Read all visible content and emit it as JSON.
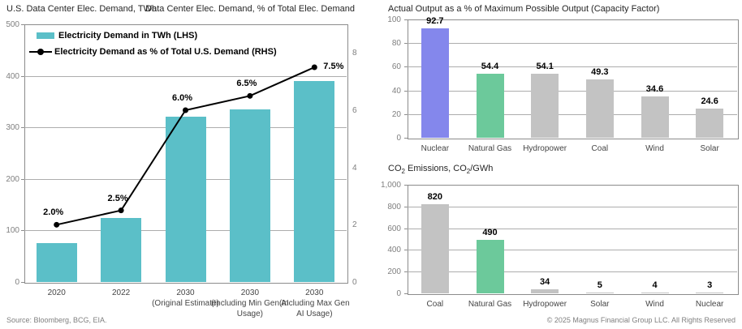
{
  "page": {
    "source_note": "Source: Bloomberg, BCG, EIA.",
    "copyright": "© 2025 Magnus Financial Group LLC. All Rights Reserved"
  },
  "chart_data": [
    {
      "id": "demand-combo",
      "type": "bar+line",
      "title_left": "U.S. Data Center Elec. Demand, TWh",
      "title_right": "Data Center Elec. Demand, % of Total Elec. Demand",
      "categories": [
        "2020",
        "2022",
        "2030\n(Original Estimate)",
        "2030\n(Including Min Gen AI\nUsage)",
        "2030\n(Including Max Gen\nAI Usage)"
      ],
      "series": [
        {
          "name": "Electricity Demand in TWh (LHS)",
          "type": "bar",
          "axis": "left",
          "color": "#5BBFC8",
          "values": [
            75,
            125,
            320,
            335,
            390
          ]
        },
        {
          "name": "Electricity Demand as % of Total U.S. Demand (RHS)",
          "type": "line",
          "axis": "right",
          "color": "#000000",
          "values": [
            2.0,
            2.5,
            6.0,
            6.5,
            7.5
          ],
          "point_labels": [
            "2.0%",
            "2.5%",
            "6.0%",
            "6.5%",
            "7.5%"
          ]
        }
      ],
      "left_axis": {
        "min": 0,
        "max": 500,
        "ticks": [
          "500",
          "400",
          "300",
          "200",
          "100",
          "0"
        ]
      },
      "right_axis": {
        "min": 0,
        "max": 9,
        "tick_values": [
          8,
          6,
          4,
          2,
          0
        ],
        "tick_labels": [
          "8",
          "6",
          "4",
          "2",
          "0"
        ]
      },
      "grid": true,
      "legend_position": "top-left-inside"
    },
    {
      "id": "capacity-factor",
      "type": "bar",
      "title": "Actual Output as a % of Maximum Possible Output (Capacity Factor)",
      "categories": [
        "Nuclear",
        "Natural Gas",
        "Hydropower",
        "Coal",
        "Wind",
        "Solar"
      ],
      "values": [
        92.7,
        54.4,
        54.1,
        49.3,
        34.6,
        24.6
      ],
      "value_labels": [
        "92.7",
        "54.4",
        "54.1",
        "49.3",
        "34.6",
        "24.6"
      ],
      "bar_colors": [
        "#8487EC",
        "#6CC99B",
        "#C3C3C3",
        "#C3C3C3",
        "#C3C3C3",
        "#C3C3C3"
      ],
      "ylim": [
        0,
        100
      ],
      "yticks": [
        "100",
        "80",
        "60",
        "40",
        "20",
        "0"
      ],
      "grid": true
    },
    {
      "id": "co2-emissions",
      "type": "bar",
      "title": "CO₂ Emissions, CO₂/GWh",
      "title_parts": {
        "p1": "CO",
        "s1": "2",
        "p2": " Emissions, CO",
        "s2": "2",
        "p3": "/GWh"
      },
      "categories": [
        "Coal",
        "Natural Gas",
        "Hydropower",
        "Solar",
        "Wind",
        "Nuclear"
      ],
      "values": [
        820,
        490,
        34,
        5,
        4,
        3
      ],
      "value_labels": [
        "820",
        "490",
        "34",
        "5",
        "4",
        "3"
      ],
      "bar_colors": [
        "#C3C3C3",
        "#6CC99B",
        "#C3C3C3",
        "#C3C3C3",
        "#C3C3C3",
        "#C3C3C3"
      ],
      "ylim": [
        0,
        1000
      ],
      "yticks": [
        "1,000",
        "800",
        "600",
        "400",
        "200",
        "0"
      ],
      "grid": true
    }
  ],
  "colors": {
    "teal_bar": "#5BBFC8",
    "nuclear_purple": "#8487EC",
    "natural_gas_green": "#6CC99B",
    "neutral_gray": "#C3C3C3",
    "line_black": "#000000"
  }
}
